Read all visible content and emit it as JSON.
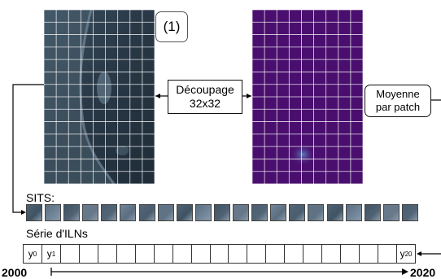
{
  "step_badge": "(1)",
  "decoupage": {
    "line1": "Découpage",
    "line2": "32x32"
  },
  "moyenne": {
    "line1": "Moyenne",
    "line2": "par patch"
  },
  "sits_label": "SITS:",
  "series_label": "Série d'ILNs",
  "series_cells": {
    "first": "y",
    "first_sub": "0",
    "second": "y",
    "second_sub": "1",
    "last": "y",
    "last_sub": "20",
    "count": 21
  },
  "timeline": {
    "start": "2000",
    "end": "2020"
  },
  "thumbnail_count": 21,
  "colors": {
    "satellite_dark": "#2c3a48",
    "satellite_light": "#5a7388",
    "heatmap": "#4a0f6e",
    "heatmap_spot": "#3b5a92",
    "grid_line": "#ffffff"
  }
}
